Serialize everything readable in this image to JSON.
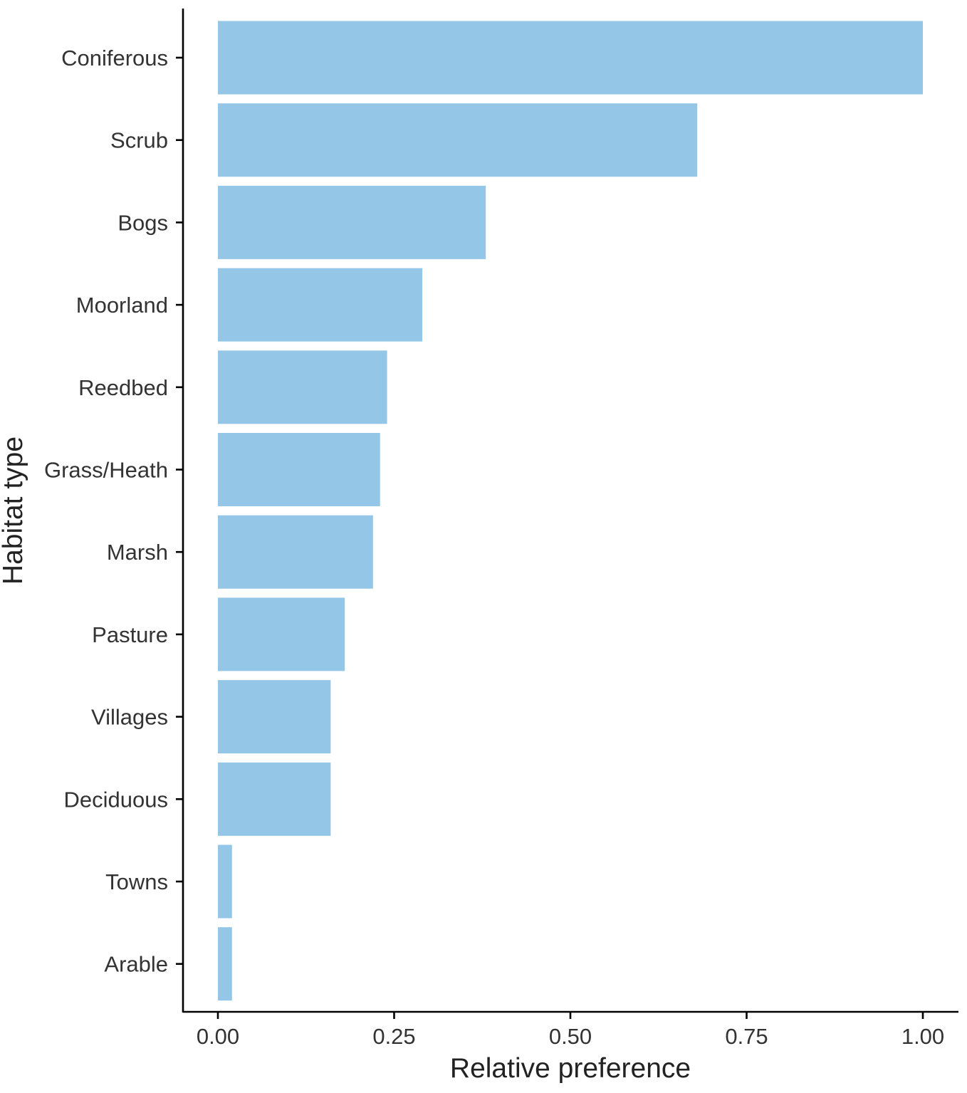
{
  "chart_data": {
    "type": "bar",
    "orientation": "horizontal",
    "categories": [
      "Coniferous",
      "Scrub",
      "Bogs",
      "Moorland",
      "Reedbed",
      "Grass/Heath",
      "Marsh",
      "Pasture",
      "Villages",
      "Deciduous",
      "Towns",
      "Arable"
    ],
    "values": [
      1.0,
      0.68,
      0.38,
      0.29,
      0.24,
      0.23,
      0.22,
      0.18,
      0.16,
      0.16,
      0.02,
      0.02
    ],
    "xlabel": "Relative preference",
    "ylabel": "Habitat type",
    "xlim": [
      -0.05,
      1.05
    ],
    "xticks": [
      0,
      0.25,
      0.5,
      0.75,
      1.0
    ],
    "xtick_labels": [
      "0.00",
      "0.25",
      "0.50",
      "0.75",
      "1.00"
    ],
    "bar_color": "#93C6E7",
    "grid": false,
    "legend": "none"
  }
}
